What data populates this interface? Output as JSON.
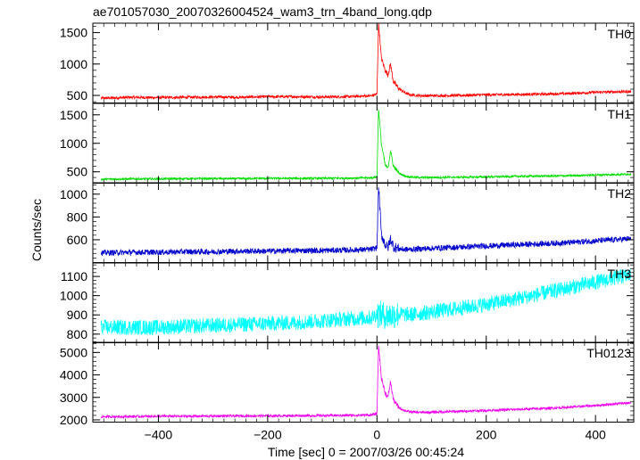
{
  "chart_data": {
    "type": "line",
    "title": "ae701057030_20070326004524_wam3_trn_4band_long.qdp",
    "xlabel": "Time [sec] 0 = 2007/03/26 00:45:24",
    "ylabel": "Counts/sec",
    "xlim": [
      -520,
      470
    ],
    "xticks": [
      -400,
      -200,
      0,
      200,
      400
    ],
    "panels": [
      {
        "name": "TH0",
        "color": "#ff0000",
        "ylim": [
          380,
          1650
        ],
        "yticks": [
          500,
          1000,
          1500
        ],
        "x": [
          -505,
          -450,
          -400,
          -350,
          -300,
          -250,
          -200,
          -150,
          -100,
          -50,
          -10,
          0,
          3,
          8,
          15,
          20,
          25,
          30,
          40,
          50,
          60,
          80,
          100,
          150,
          200,
          250,
          300,
          350,
          400,
          450,
          465
        ],
        "y": [
          455,
          470,
          465,
          470,
          475,
          470,
          480,
          480,
          475,
          480,
          495,
          520,
          1650,
          1100,
          900,
          830,
          1000,
          720,
          610,
          550,
          510,
          495,
          495,
          500,
          510,
          515,
          520,
          530,
          550,
          560,
          560
        ],
        "noise": 22
      },
      {
        "name": "TH1",
        "color": "#00dd00",
        "ylim": [
          300,
          1700
        ],
        "yticks": [
          500,
          1000,
          1500
        ],
        "x": [
          -505,
          -450,
          -400,
          -350,
          -300,
          -250,
          -200,
          -150,
          -100,
          -50,
          -10,
          0,
          3,
          8,
          15,
          20,
          25,
          30,
          40,
          50,
          60,
          80,
          100,
          150,
          200,
          250,
          300,
          350,
          400,
          450,
          465
        ],
        "y": [
          370,
          375,
          375,
          380,
          380,
          380,
          385,
          385,
          385,
          390,
          395,
          410,
          1610,
          1000,
          620,
          560,
          880,
          600,
          480,
          430,
          410,
          400,
          400,
          405,
          410,
          420,
          425,
          430,
          445,
          455,
          460
        ],
        "noise": 18
      },
      {
        "name": "TH2",
        "color": "#0000cc",
        "ylim": [
          400,
          1100
        ],
        "yticks": [
          600,
          800,
          1000
        ],
        "x": [
          -505,
          -450,
          -400,
          -350,
          -300,
          -250,
          -200,
          -150,
          -100,
          -50,
          -10,
          0,
          3,
          8,
          15,
          20,
          25,
          30,
          40,
          50,
          60,
          80,
          100,
          150,
          200,
          250,
          300,
          350,
          400,
          450,
          465
        ],
        "y": [
          485,
          490,
          490,
          495,
          495,
          500,
          500,
          505,
          505,
          510,
          515,
          530,
          1070,
          650,
          560,
          530,
          610,
          540,
          520,
          515,
          515,
          520,
          525,
          535,
          545,
          555,
          565,
          575,
          590,
          605,
          610
        ],
        "noise": 25
      },
      {
        "name": "TH3",
        "color": "#00ffff",
        "ylim": [
          755,
          1170
        ],
        "yticks": [
          800,
          900,
          1000,
          1100
        ],
        "x": [
          -505,
          -450,
          -400,
          -350,
          -300,
          -250,
          -200,
          -150,
          -100,
          -50,
          -10,
          0,
          10,
          20,
          40,
          60,
          100,
          150,
          200,
          250,
          300,
          350,
          400,
          450,
          465
        ],
        "y": [
          835,
          835,
          835,
          840,
          845,
          850,
          855,
          860,
          870,
          880,
          885,
          905,
          900,
          895,
          905,
          900,
          915,
          935,
          955,
          980,
          1010,
          1040,
          1070,
          1100,
          1105
        ],
        "noise": 40
      },
      {
        "name": "TH0123",
        "color": "#ee00ee",
        "ylim": [
          1900,
          5450
        ],
        "yticks": [
          2000,
          3000,
          4000,
          5000
        ],
        "x": [
          -505,
          -450,
          -400,
          -350,
          -300,
          -250,
          -200,
          -150,
          -100,
          -50,
          -10,
          0,
          3,
          8,
          15,
          20,
          25,
          30,
          40,
          50,
          60,
          80,
          100,
          150,
          200,
          250,
          300,
          350,
          400,
          450,
          465
        ],
        "y": [
          2140,
          2150,
          2160,
          2160,
          2170,
          2175,
          2180,
          2185,
          2190,
          2200,
          2220,
          2280,
          5300,
          3900,
          3200,
          3000,
          3700,
          2900,
          2550,
          2420,
          2360,
          2330,
          2340,
          2380,
          2420,
          2460,
          2500,
          2560,
          2640,
          2740,
          2760
        ],
        "noise": 55
      }
    ]
  }
}
